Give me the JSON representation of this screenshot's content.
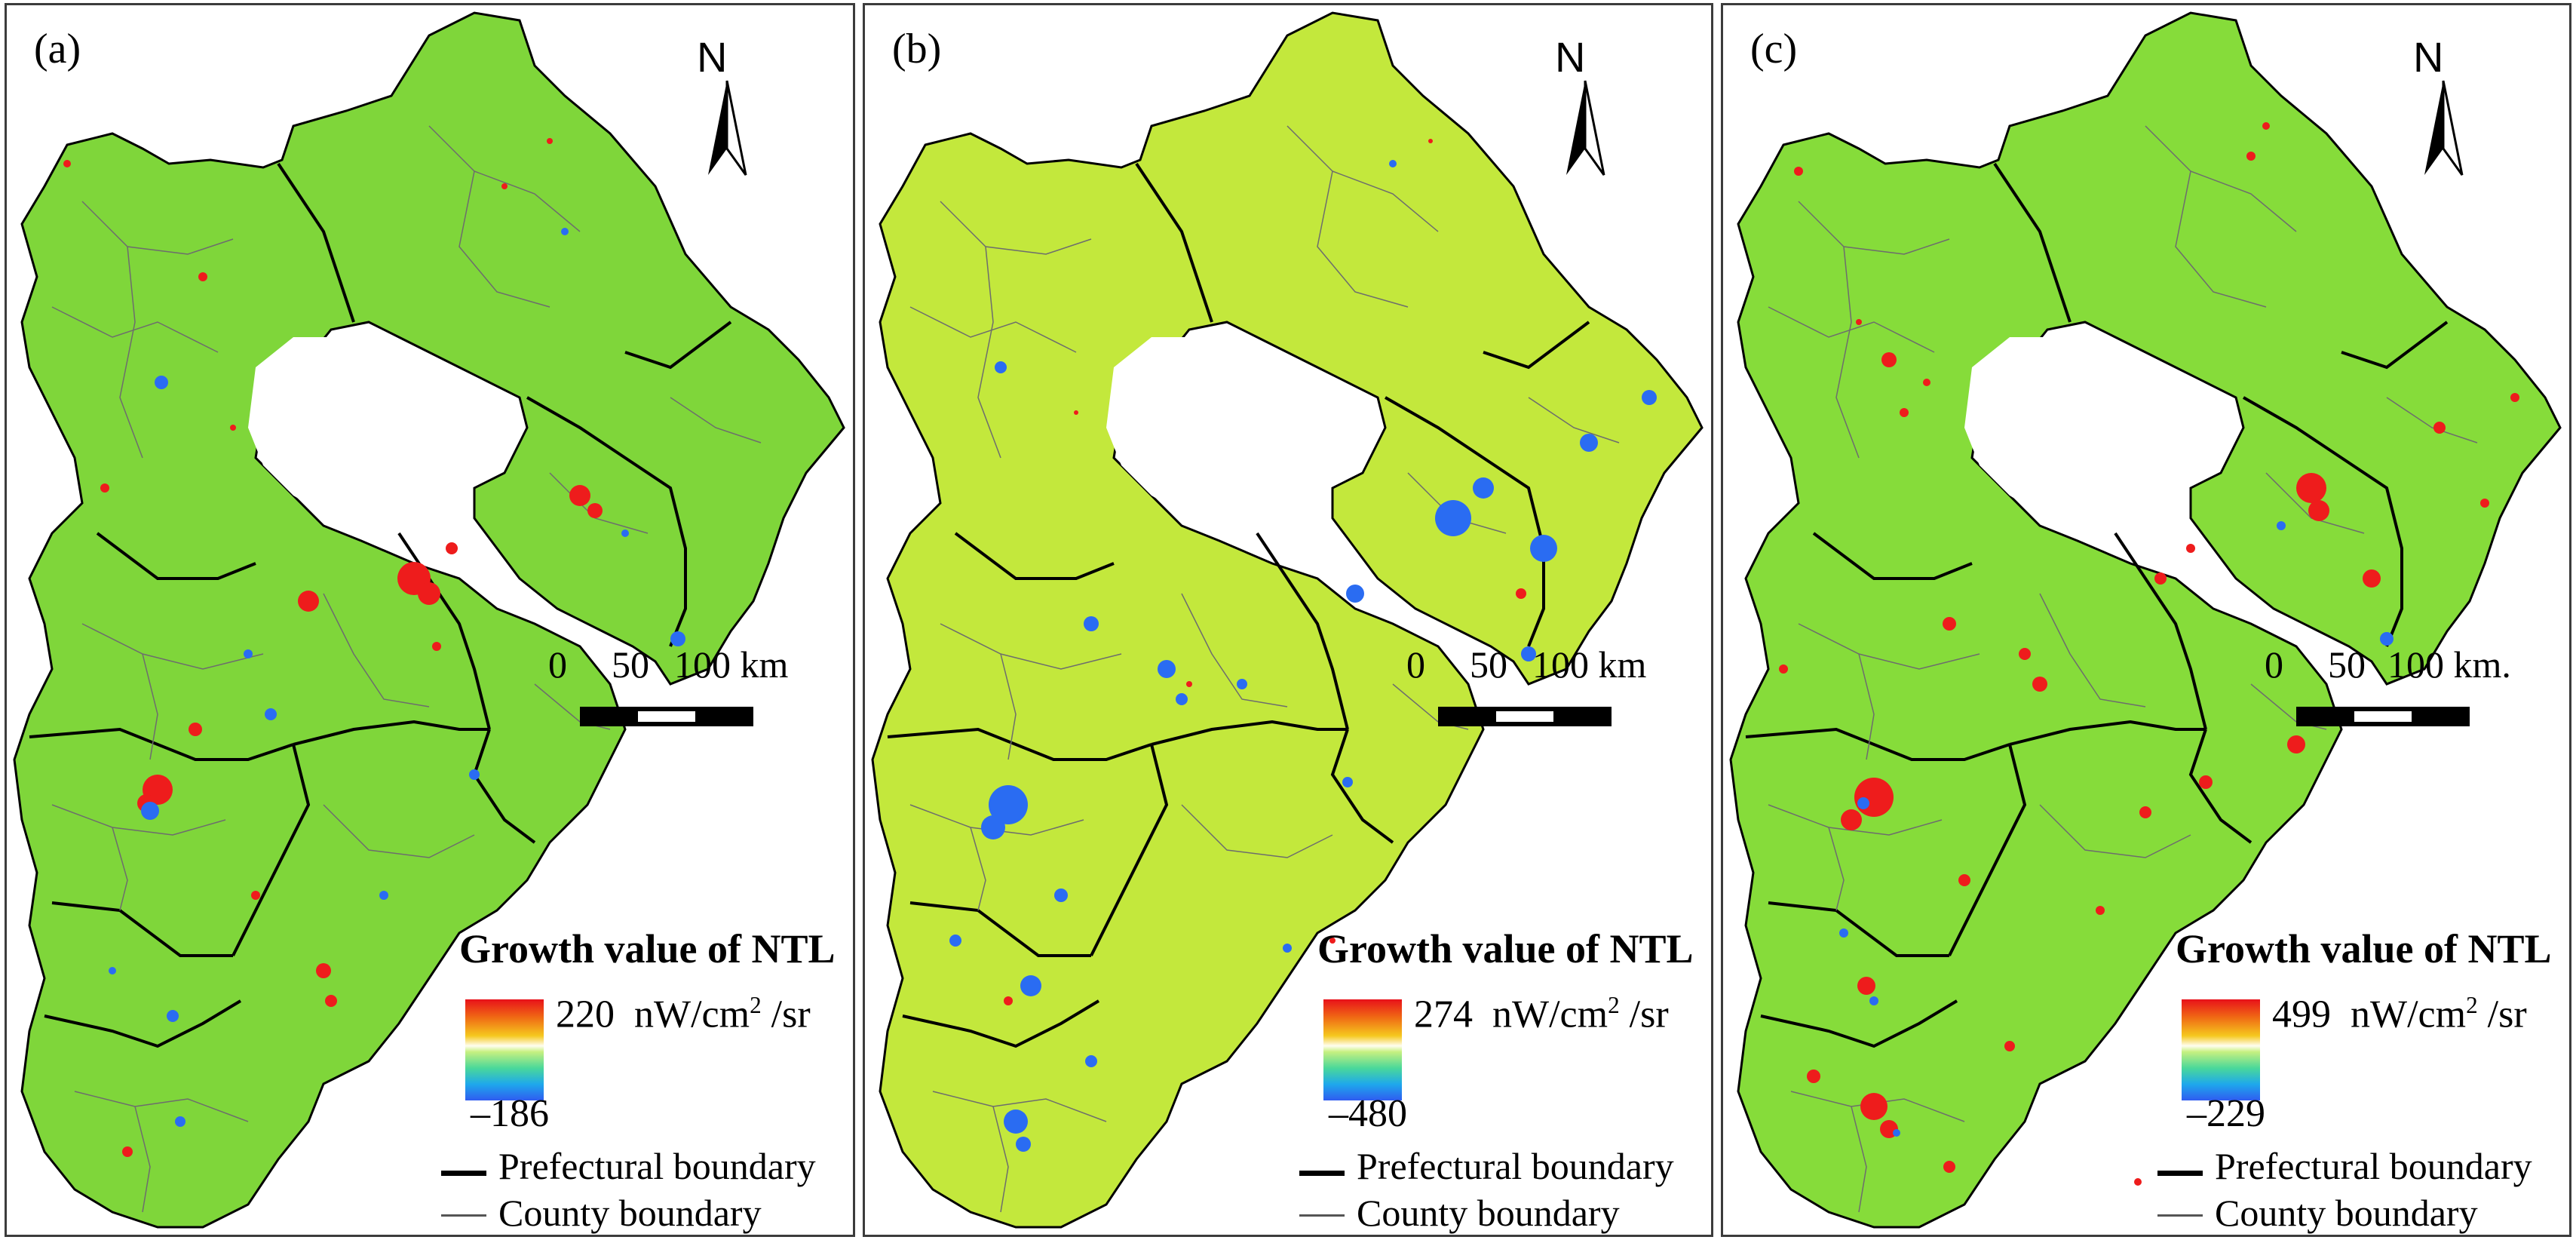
{
  "colors": {
    "base_a": "#7fd63a",
    "base_b": "#c3e83c",
    "base_c": "#86dc3a",
    "increase": "#ee1c1c",
    "decrease": "#2a6cf2",
    "county_line": "#6d6d6d",
    "prefecture_line": "#000000"
  },
  "panels": [
    {
      "label": "(a)",
      "north": "N",
      "scale": {
        "zero": "0",
        "mid": "50",
        "max": "100",
        "unit": "km"
      },
      "legend": {
        "title": "Growth value of NTL",
        "max_value": "220",
        "unit_prefix": "nW/cm",
        "unit_sup": "2",
        "unit_suffix": " /sr",
        "min_value": "–186",
        "prefecture_label": "Prefectural boundary",
        "county_label": "County boundary"
      }
    },
    {
      "label": "(b)",
      "north": "N",
      "scale": {
        "zero": "0",
        "mid": "50",
        "max": "100",
        "unit": "km"
      },
      "legend": {
        "title": "Growth value of NTL",
        "max_value": "274",
        "unit_prefix": "nW/cm",
        "unit_sup": "2",
        "unit_suffix": " /sr",
        "min_value": "–480",
        "prefecture_label": "Prefectural boundary",
        "county_label": "County boundary"
      }
    },
    {
      "label": "(c)",
      "north": "N",
      "scale": {
        "zero": "0",
        "mid": "50",
        "max": "100",
        "unit": "km."
      },
      "legend": {
        "title": "Growth value of NTL",
        "max_value": "499",
        "unit_prefix": "nW/cm",
        "unit_sup": "2",
        "unit_suffix": " /sr",
        "min_value": "–229",
        "prefecture_label": "Prefectural boundary",
        "county_label": "County boundary"
      }
    }
  ]
}
